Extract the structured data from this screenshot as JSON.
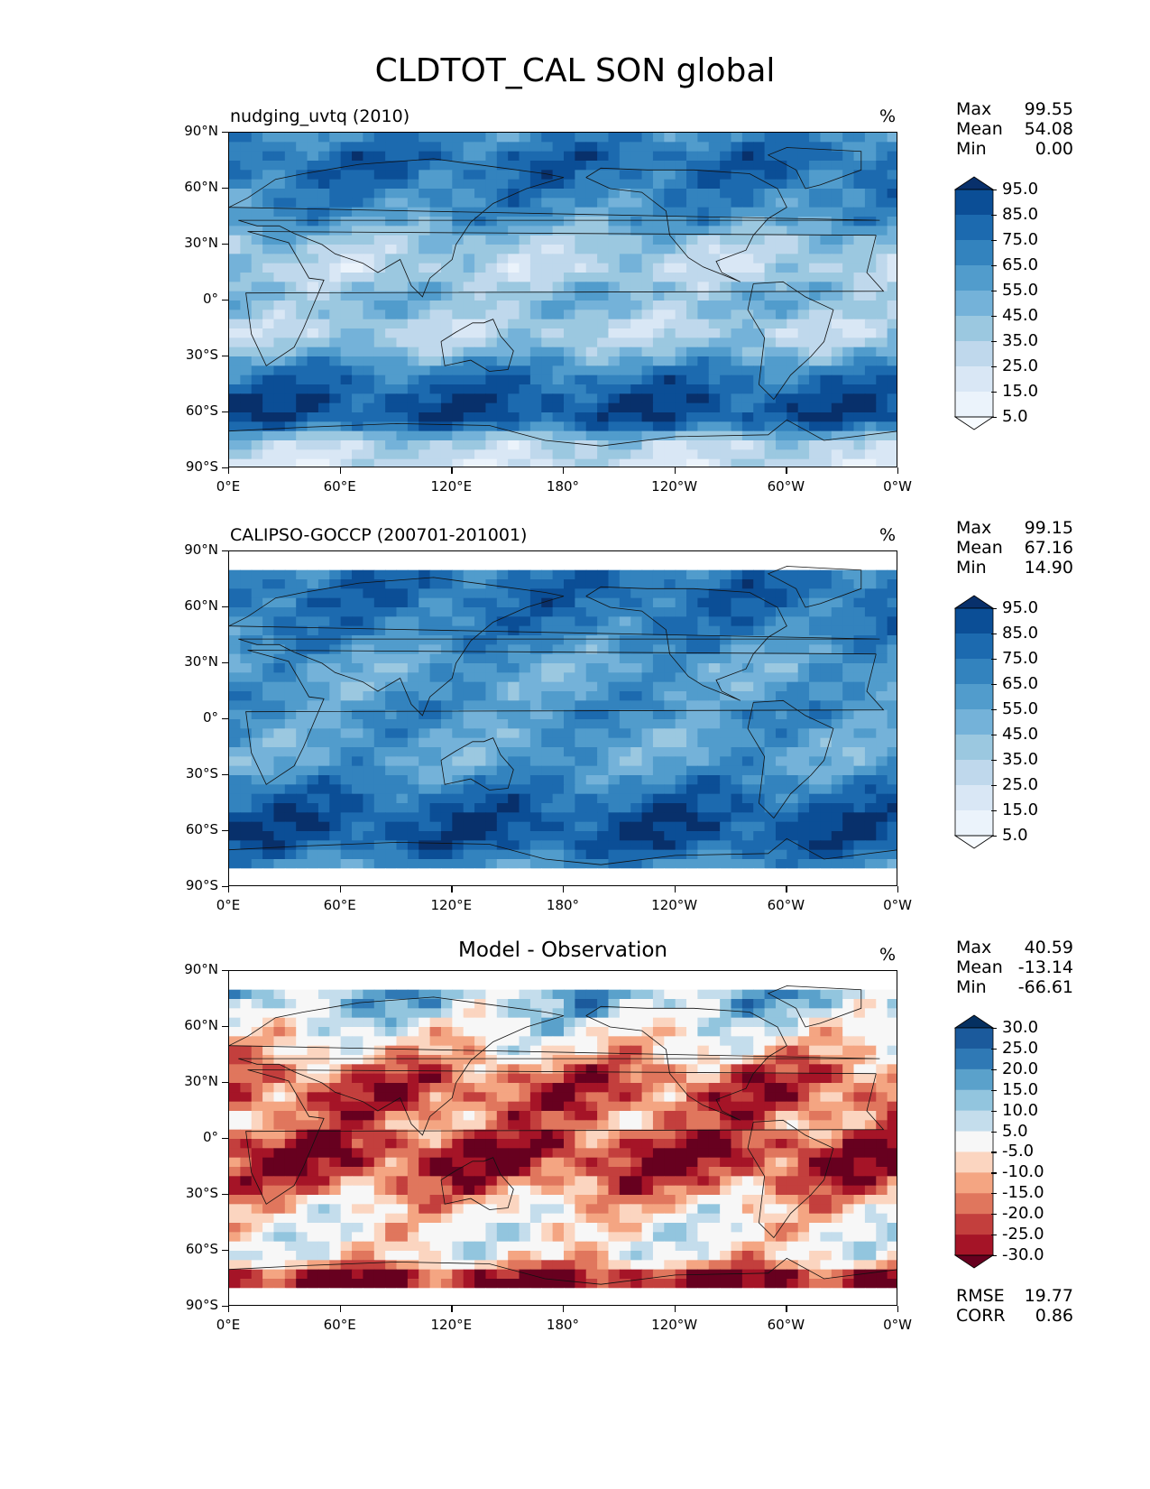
{
  "chart_data": {
    "type": "heatmap",
    "title": "CLDTOT_CAL SON global",
    "panels": [
      {
        "title": "nudging_uvtq (2010)",
        "units": "%",
        "stats": [
          {
            "label": "Max",
            "value": "99.55"
          },
          {
            "label": "Mean",
            "value": "54.08"
          },
          {
            "label": "Min",
            "value": "0.00"
          }
        ],
        "yticks": [
          "90°N",
          "60°N",
          "30°N",
          "0°",
          "30°S",
          "60°S",
          "90°S"
        ],
        "xticks": [
          "0°E",
          "60°E",
          "120°E",
          "180°",
          "120°W",
          "60°W",
          "0°W"
        ],
        "colorbar": {
          "levels": [
            "95.0",
            "85.0",
            "75.0",
            "65.0",
            "55.0",
            "45.0",
            "35.0",
            "25.0",
            "15.0",
            "5.0"
          ],
          "colors": [
            "#08306b",
            "#0b4e96",
            "#1c6aaf",
            "#3383be",
            "#519ccc",
            "#74b2d9",
            "#9bc8e0",
            "#bfd8ec",
            "#d9e7f5",
            "#ebf3fb",
            "#f7fbff"
          ]
        },
        "profile": [
          {
            "lat": 88,
            "value": 68
          },
          {
            "lat": 75,
            "value": 82
          },
          {
            "lat": 60,
            "value": 72
          },
          {
            "lat": 45,
            "value": 62
          },
          {
            "lat": 30,
            "value": 38
          },
          {
            "lat": 15,
            "value": 30
          },
          {
            "lat": 5,
            "value": 48
          },
          {
            "lat": -5,
            "value": 45
          },
          {
            "lat": -15,
            "value": 30
          },
          {
            "lat": -25,
            "value": 42
          },
          {
            "lat": -40,
            "value": 75
          },
          {
            "lat": -55,
            "value": 90
          },
          {
            "lat": -65,
            "value": 88
          },
          {
            "lat": -75,
            "value": 35
          },
          {
            "lat": -88,
            "value": 25
          }
        ],
        "coverage": [
          -90,
          90
        ]
      },
      {
        "title": "CALIPSO-GOCCP (200701-201001)",
        "units": "%",
        "stats": [
          {
            "label": "Max",
            "value": "99.15"
          },
          {
            "label": "Mean",
            "value": "67.16"
          },
          {
            "label": "Min",
            "value": "14.90"
          }
        ],
        "yticks": [
          "90°N",
          "60°N",
          "30°N",
          "0°",
          "30°S",
          "60°S",
          "90°S"
        ],
        "xticks": [
          "0°E",
          "60°E",
          "120°E",
          "180°",
          "120°W",
          "60°W",
          "0°W"
        ],
        "colorbar": {
          "levels": [
            "95.0",
            "85.0",
            "75.0",
            "65.0",
            "55.0",
            "45.0",
            "35.0",
            "25.0",
            "15.0",
            "5.0"
          ],
          "colors": [
            "#08306b",
            "#0b4e96",
            "#1c6aaf",
            "#3383be",
            "#519ccc",
            "#74b2d9",
            "#9bc8e0",
            "#bfd8ec",
            "#d9e7f5",
            "#ebf3fb",
            "#f7fbff"
          ]
        },
        "profile": [
          {
            "lat": 82,
            "value": 72
          },
          {
            "lat": 70,
            "value": 80
          },
          {
            "lat": 60,
            "value": 76
          },
          {
            "lat": 45,
            "value": 70
          },
          {
            "lat": 30,
            "value": 55
          },
          {
            "lat": 15,
            "value": 58
          },
          {
            "lat": 5,
            "value": 66
          },
          {
            "lat": -5,
            "value": 60
          },
          {
            "lat": -15,
            "value": 56
          },
          {
            "lat": -25,
            "value": 58
          },
          {
            "lat": -40,
            "value": 78
          },
          {
            "lat": -55,
            "value": 90
          },
          {
            "lat": -65,
            "value": 88
          },
          {
            "lat": -75,
            "value": 70
          },
          {
            "lat": -82,
            "value": 55
          }
        ],
        "coverage": [
          -82,
          82
        ]
      },
      {
        "title": "Model - Observation",
        "units": "%",
        "stats": [
          {
            "label": "Max",
            "value": "40.59"
          },
          {
            "label": "Mean",
            "value": "-13.14"
          },
          {
            "label": "Min",
            "value": "-66.61"
          }
        ],
        "yticks": [
          "90°N",
          "60°N",
          "30°N",
          "0°",
          "30°S",
          "60°S",
          "90°S"
        ],
        "xticks": [
          "0°E",
          "60°E",
          "120°E",
          "180°",
          "120°W",
          "60°W",
          "0°W"
        ],
        "colorbar": {
          "levels": [
            "30.0",
            "25.0",
            "20.0",
            "15.0",
            "10.0",
            "5.0",
            "-5.0",
            "-10.0",
            "-15.0",
            "-20.0",
            "-25.0",
            "-30.0"
          ],
          "colors": [
            "#053061",
            "#1b5a9c",
            "#2f79b5",
            "#5aa1cb",
            "#92c5de",
            "#c4ddec",
            "#f7f7f7",
            "#fbd5c0",
            "#f4a582",
            "#e0765d",
            "#c33f3d",
            "#a51427",
            "#67001f"
          ]
        },
        "profile": [
          {
            "lat": 82,
            "value": 14
          },
          {
            "lat": 70,
            "value": 10
          },
          {
            "lat": 60,
            "value": 2
          },
          {
            "lat": 45,
            "value": -8
          },
          {
            "lat": 35,
            "value": -20
          },
          {
            "lat": 20,
            "value": -22
          },
          {
            "lat": 8,
            "value": -15
          },
          {
            "lat": -5,
            "value": -28
          },
          {
            "lat": -15,
            "value": -26
          },
          {
            "lat": -25,
            "value": -18
          },
          {
            "lat": -40,
            "value": -3
          },
          {
            "lat": -55,
            "value": 0
          },
          {
            "lat": -65,
            "value": -4
          },
          {
            "lat": -72,
            "value": -28
          },
          {
            "lat": -82,
            "value": -30
          }
        ],
        "coverage": [
          -82,
          82
        ],
        "metrics": [
          {
            "label": "RMSE",
            "value": "19.77"
          },
          {
            "label": "CORR",
            "value": "0.86"
          }
        ]
      }
    ]
  }
}
